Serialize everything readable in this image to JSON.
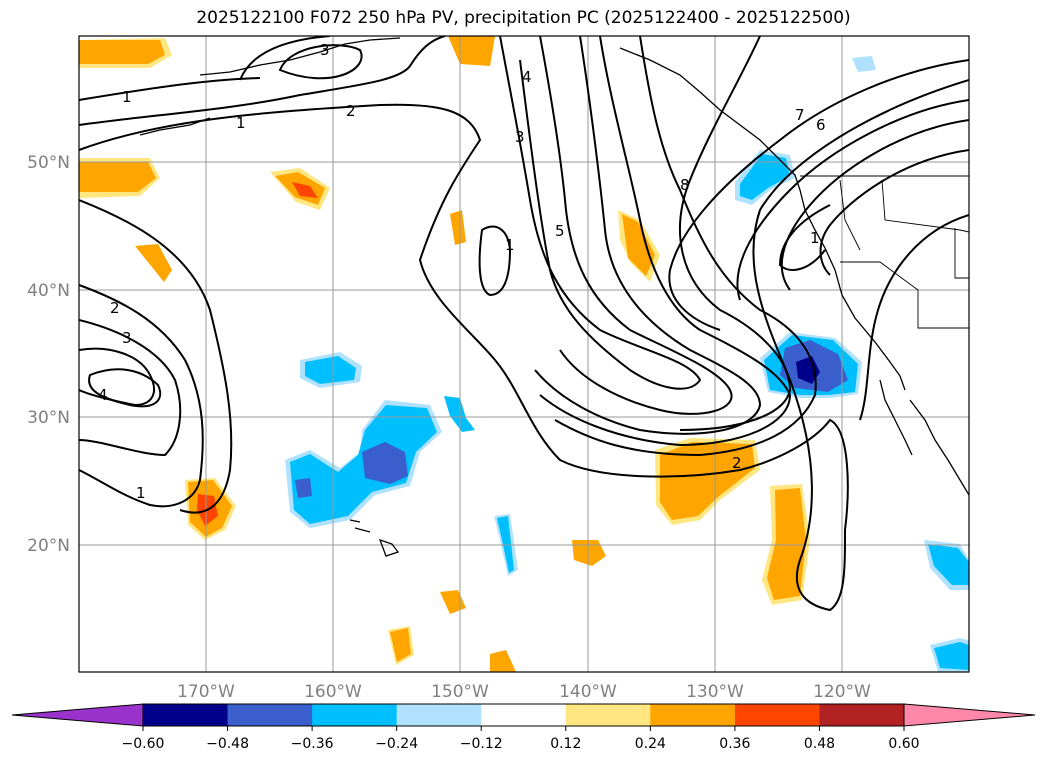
{
  "title": "2025122100 F072 250 hPa PV, precipitation PC (2025122400 - 2025122500)",
  "map": {
    "lat_labels": [
      "50°N",
      "40°N",
      "30°N",
      "20°N"
    ],
    "lon_labels": [
      "170°W",
      "160°W",
      "150°W",
      "140°W",
      "130°W",
      "120°W"
    ],
    "gridlines": true,
    "lon_range": [
      -180,
      -110
    ],
    "lat_range": [
      10,
      60
    ]
  },
  "colorbar": {
    "ticks": [
      "−0.60",
      "−0.48",
      "−0.36",
      "−0.24",
      "−0.12",
      "0.12",
      "0.24",
      "0.36",
      "0.48",
      "0.60"
    ],
    "colors": [
      "#9933cc",
      "#00008b",
      "#3a5fcd",
      "#00bfff",
      "#b0e2ff",
      "#ffffff",
      "#ffe680",
      "#ffa500",
      "#ff4500",
      "#b22222",
      "#ff88aa"
    ],
    "extend": "both"
  },
  "contour_labels": [
    "1",
    "2",
    "3",
    "4",
    "5",
    "6",
    "7",
    "8",
    "1",
    "1",
    "2",
    "3",
    "4",
    "1",
    "2",
    "3",
    "1",
    "2"
  ]
}
